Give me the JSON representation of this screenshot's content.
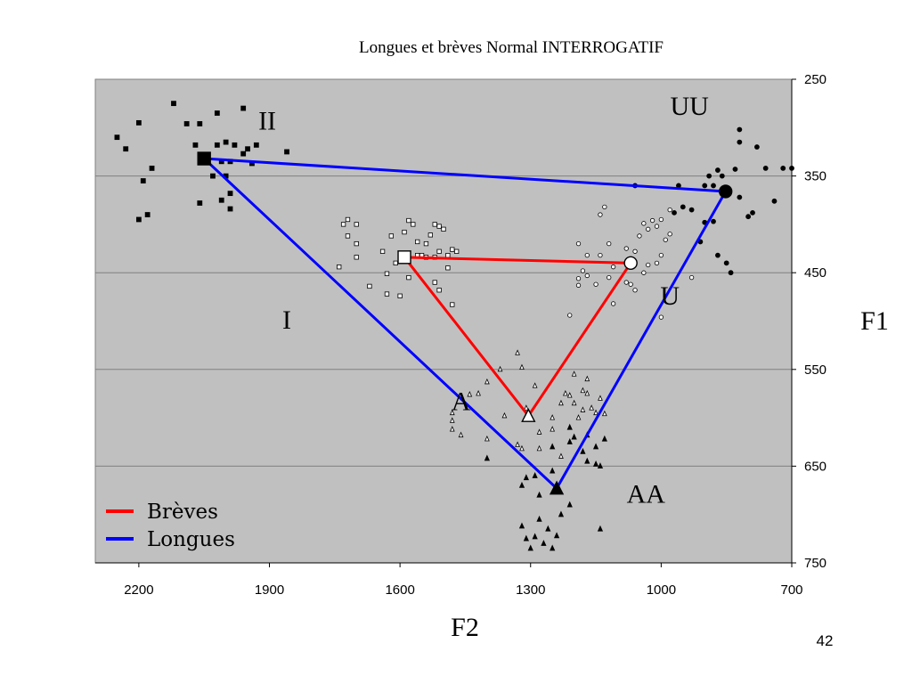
{
  "page_number": "42",
  "chart_data": {
    "type": "scatter",
    "title": "Longues et brèves Normal INTERROGATIF",
    "xlabel": "F2",
    "ylabel": "F1",
    "x_reversed": true,
    "y_reversed": true,
    "xlim": [
      2300,
      700
    ],
    "ylim": [
      250,
      750
    ],
    "xticks": [
      2200,
      1900,
      1600,
      1300,
      1000,
      700
    ],
    "yticks": [
      250,
      350,
      450,
      550,
      650,
      750
    ],
    "grid": "horizontal",
    "background": "#c0c0c0",
    "legend_position": "bottom-left",
    "legend": [
      {
        "label": "Brèves",
        "color": "#ff0000"
      },
      {
        "label": "Longues",
        "color": "#0000ff"
      }
    ],
    "vowel_labels": [
      {
        "text": "II",
        "x": 1905,
        "y": 302
      },
      {
        "text": "UU",
        "x": 935,
        "y": 287
      },
      {
        "text": "I",
        "x": 1860,
        "y": 508
      },
      {
        "text": "U",
        "x": 980,
        "y": 483
      },
      {
        "text": "A",
        "x": 1460,
        "y": 592
      },
      {
        "text": "AA",
        "x": 1035,
        "y": 688
      }
    ],
    "polygons": [
      {
        "name": "Longues",
        "color": "#0000ff",
        "points": [
          [
            2050,
            332
          ],
          [
            852,
            366
          ],
          [
            1240,
            673
          ]
        ]
      },
      {
        "name": "Brèves",
        "color": "#ff0000",
        "points": [
          [
            1590,
            434
          ],
          [
            1070,
            440
          ],
          [
            1305,
            598
          ]
        ]
      }
    ],
    "means": [
      {
        "vowel": "II",
        "marker": "square-filled",
        "x": 2050,
        "y": 332
      },
      {
        "vowel": "UU",
        "marker": "circle-filled",
        "x": 852,
        "y": 366
      },
      {
        "vowel": "AA",
        "marker": "triangle-filled",
        "x": 1240,
        "y": 673
      },
      {
        "vowel": "I",
        "marker": "square-open",
        "x": 1590,
        "y": 434
      },
      {
        "vowel": "U",
        "marker": "circle-open",
        "x": 1070,
        "y": 440
      },
      {
        "vowel": "A",
        "marker": "triangle-open",
        "x": 1305,
        "y": 598
      }
    ],
    "series": [
      {
        "vowel": "II",
        "marker": "square-filled",
        "points": [
          [
            2200,
            295
          ],
          [
            2250,
            310
          ],
          [
            2230,
            322
          ],
          [
            2170,
            342
          ],
          [
            2190,
            355
          ],
          [
            2120,
            275
          ],
          [
            2090,
            296
          ],
          [
            2060,
            296
          ],
          [
            2020,
            285
          ],
          [
            2070,
            318
          ],
          [
            2050,
            332
          ],
          [
            2000,
            315
          ],
          [
            1980,
            318
          ],
          [
            2020,
            318
          ],
          [
            1990,
            335
          ],
          [
            1960,
            327
          ],
          [
            1950,
            322
          ],
          [
            1930,
            318
          ],
          [
            1860,
            325
          ],
          [
            1940,
            337
          ],
          [
            2000,
            350
          ],
          [
            2030,
            350
          ],
          [
            1990,
            368
          ],
          [
            2060,
            378
          ],
          [
            2010,
            375
          ],
          [
            1990,
            384
          ],
          [
            2180,
            390
          ],
          [
            2200,
            395
          ],
          [
            1960,
            280
          ],
          [
            2010,
            335
          ]
        ]
      },
      {
        "vowel": "UU",
        "marker": "circle-filled",
        "points": [
          [
            820,
            302
          ],
          [
            820,
            315
          ],
          [
            780,
            320
          ],
          [
            760,
            342
          ],
          [
            830,
            343
          ],
          [
            890,
            350
          ],
          [
            860,
            350
          ],
          [
            870,
            344
          ],
          [
            880,
            360
          ],
          [
            850,
            366
          ],
          [
            820,
            372
          ],
          [
            950,
            382
          ],
          [
            930,
            385
          ],
          [
            900,
            398
          ],
          [
            880,
            397
          ],
          [
            900,
            360
          ],
          [
            960,
            360
          ],
          [
            790,
            388
          ],
          [
            800,
            392
          ],
          [
            740,
            376
          ],
          [
            720,
            342
          ],
          [
            700,
            342
          ],
          [
            850,
            440
          ],
          [
            840,
            450
          ],
          [
            870,
            432
          ],
          [
            910,
            418
          ],
          [
            970,
            388
          ],
          [
            1060,
            360
          ]
        ]
      },
      {
        "vowel": "AA",
        "marker": "triangle-filled",
        "points": [
          [
            1250,
            655
          ],
          [
            1240,
            673
          ],
          [
            1290,
            660
          ],
          [
            1310,
            662
          ],
          [
            1320,
            670
          ],
          [
            1280,
            680
          ],
          [
            1230,
            700
          ],
          [
            1210,
            690
          ],
          [
            1280,
            705
          ],
          [
            1260,
            715
          ],
          [
            1320,
            712
          ],
          [
            1310,
            725
          ],
          [
            1270,
            730
          ],
          [
            1250,
            735
          ],
          [
            1300,
            735
          ],
          [
            1290,
            723
          ],
          [
            1240,
            722
          ],
          [
            1180,
            635
          ],
          [
            1170,
            645
          ],
          [
            1150,
            648
          ],
          [
            1140,
            650
          ],
          [
            1150,
            630
          ],
          [
            1130,
            622
          ],
          [
            1170,
            618
          ],
          [
            1200,
            620
          ],
          [
            1210,
            610
          ],
          [
            1140,
            715
          ],
          [
            1210,
            625
          ],
          [
            1400,
            642
          ],
          [
            1250,
            630
          ]
        ]
      },
      {
        "vowel": "I",
        "marker": "square-open",
        "points": [
          [
            1720,
            395
          ],
          [
            1730,
            400
          ],
          [
            1700,
            400
          ],
          [
            1720,
            412
          ],
          [
            1620,
            412
          ],
          [
            1590,
            408
          ],
          [
            1570,
            400
          ],
          [
            1580,
            396
          ],
          [
            1560,
            418
          ],
          [
            1540,
            420
          ],
          [
            1520,
            400
          ],
          [
            1510,
            402
          ],
          [
            1500,
            405
          ],
          [
            1530,
            411
          ],
          [
            1480,
            426
          ],
          [
            1470,
            428
          ],
          [
            1490,
            432
          ],
          [
            1510,
            428
          ],
          [
            1520,
            434
          ],
          [
            1540,
            434
          ],
          [
            1550,
            432
          ],
          [
            1560,
            432
          ],
          [
            1590,
            434
          ],
          [
            1610,
            440
          ],
          [
            1640,
            428
          ],
          [
            1700,
            420
          ],
          [
            1700,
            434
          ],
          [
            1740,
            444
          ],
          [
            1630,
            451
          ],
          [
            1580,
            455
          ],
          [
            1520,
            460
          ],
          [
            1510,
            468
          ],
          [
            1670,
            464
          ],
          [
            1630,
            472
          ],
          [
            1600,
            474
          ],
          [
            1480,
            483
          ],
          [
            1490,
            445
          ]
        ]
      },
      {
        "vowel": "U",
        "marker": "circle-open",
        "points": [
          [
            1130,
            382
          ],
          [
            1140,
            390
          ],
          [
            1040,
            399
          ],
          [
            1020,
            396
          ],
          [
            980,
            385
          ],
          [
            1000,
            395
          ],
          [
            1010,
            402
          ],
          [
            980,
            410
          ],
          [
            990,
            416
          ],
          [
            1030,
            405
          ],
          [
            1050,
            412
          ],
          [
            1060,
            428
          ],
          [
            1080,
            425
          ],
          [
            1120,
            420
          ],
          [
            1140,
            432
          ],
          [
            1190,
            420
          ],
          [
            1170,
            432
          ],
          [
            1180,
            448
          ],
          [
            1110,
            444
          ],
          [
            1120,
            455
          ],
          [
            1150,
            462
          ],
          [
            1190,
            463
          ],
          [
            1170,
            453
          ],
          [
            1080,
            460
          ],
          [
            1070,
            462
          ],
          [
            1060,
            468
          ],
          [
            1040,
            450
          ],
          [
            1000,
            432
          ],
          [
            1010,
            440
          ],
          [
            1030,
            442
          ],
          [
            1190,
            456
          ],
          [
            1110,
            482
          ],
          [
            1210,
            494
          ],
          [
            1000,
            496
          ],
          [
            930,
            455
          ],
          [
            1070,
            440
          ]
        ]
      },
      {
        "vowel": "A",
        "marker": "triangle-open",
        "points": [
          [
            1330,
            533
          ],
          [
            1320,
            548
          ],
          [
            1370,
            550
          ],
          [
            1400,
            563
          ],
          [
            1420,
            575
          ],
          [
            1440,
            576
          ],
          [
            1310,
            590
          ],
          [
            1305,
            598
          ],
          [
            1290,
            567
          ],
          [
            1220,
            575
          ],
          [
            1230,
            585
          ],
          [
            1210,
            577
          ],
          [
            1200,
            585
          ],
          [
            1180,
            572
          ],
          [
            1170,
            575
          ],
          [
            1180,
            592
          ],
          [
            1150,
            595
          ],
          [
            1130,
            596
          ],
          [
            1480,
            603
          ],
          [
            1480,
            612
          ],
          [
            1460,
            618
          ],
          [
            1400,
            622
          ],
          [
            1330,
            628
          ],
          [
            1320,
            632
          ],
          [
            1280,
            632
          ],
          [
            1280,
            615
          ],
          [
            1250,
            612
          ],
          [
            1230,
            640
          ],
          [
            1190,
            600
          ],
          [
            1160,
            590
          ],
          [
            1140,
            580
          ],
          [
            1200,
            555
          ],
          [
            1170,
            560
          ],
          [
            1480,
            595
          ],
          [
            1360,
            598
          ],
          [
            1250,
            600
          ]
        ]
      }
    ]
  }
}
